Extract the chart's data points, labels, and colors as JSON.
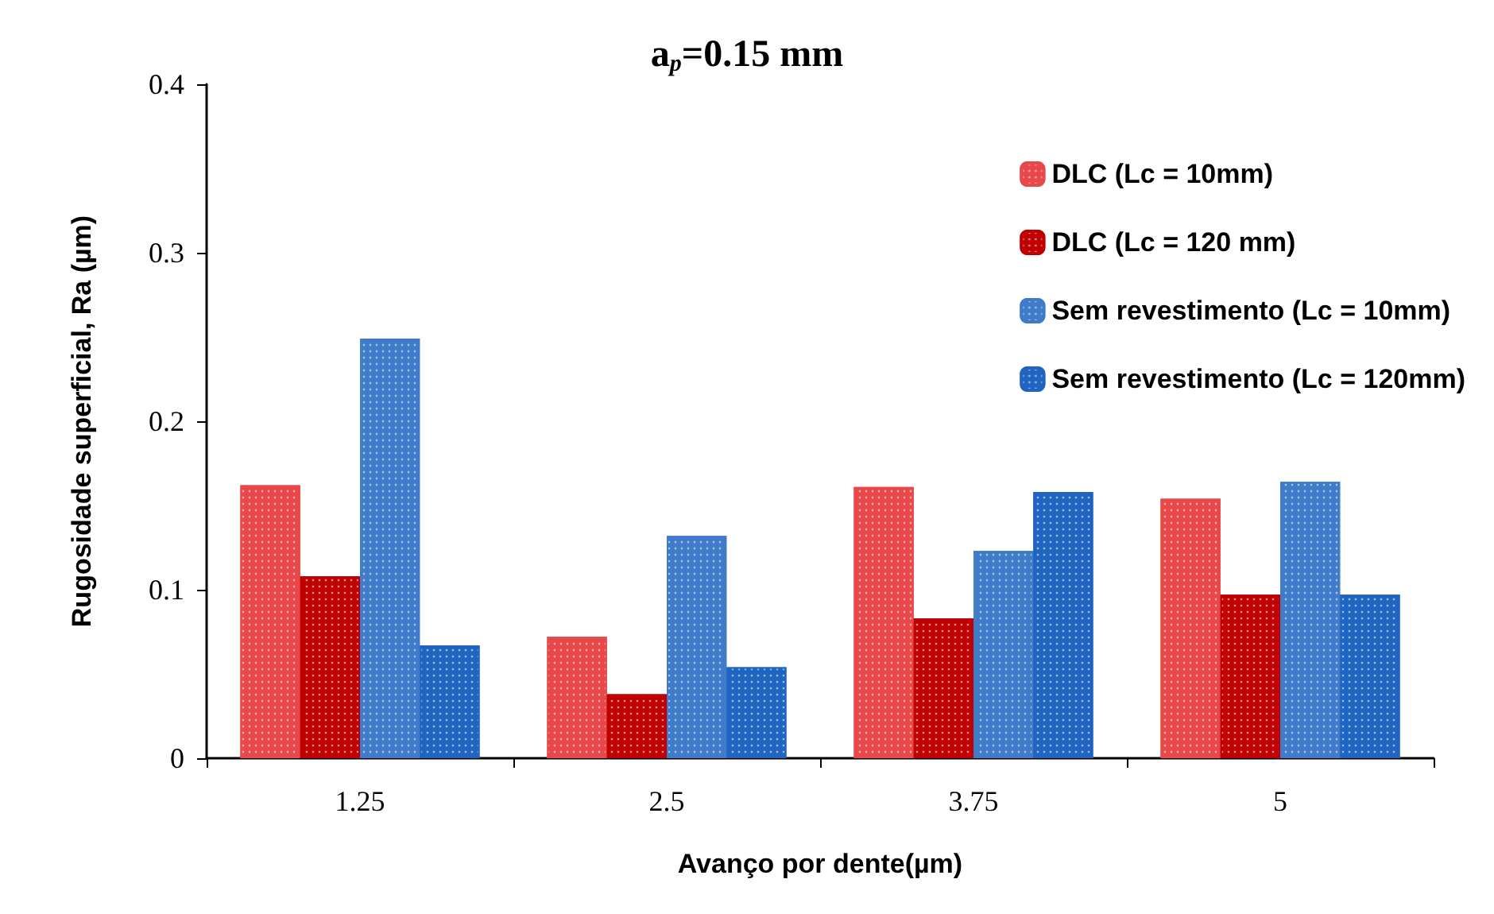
{
  "chart_data": {
    "type": "bar",
    "title": "a$_{p}$=0.15 mm",
    "xlabel": "Avanço por dente(µm)",
    "ylabel": "Rugosidade superficial, Ra (µm)",
    "categories": [
      "1.25",
      "2.5",
      "3.75",
      "5"
    ],
    "series": [
      {
        "name": "DLC (Lc = 10mm)",
        "color": "#e8484a",
        "values": [
          0.162,
          0.072,
          0.161,
          0.154
        ]
      },
      {
        "name": "DLC (Lc = 120 mm)",
        "color": "#c00000",
        "values": [
          0.108,
          0.038,
          0.083,
          0.097
        ]
      },
      {
        "name": "Sem revestimento (Lc = 10mm)",
        "color": "#3f7bc8",
        "values": [
          0.249,
          0.132,
          0.123,
          0.164
        ]
      },
      {
        "name": "Sem revestimento (Lc = 120mm)",
        "color": "#1f64c0",
        "values": [
          0.067,
          0.054,
          0.158,
          0.097
        ]
      }
    ],
    "ylim": [
      0,
      0.4
    ],
    "yticks": [
      0,
      0.1,
      0.2,
      0.3,
      0.4
    ],
    "grid": false,
    "legend": "top right"
  }
}
